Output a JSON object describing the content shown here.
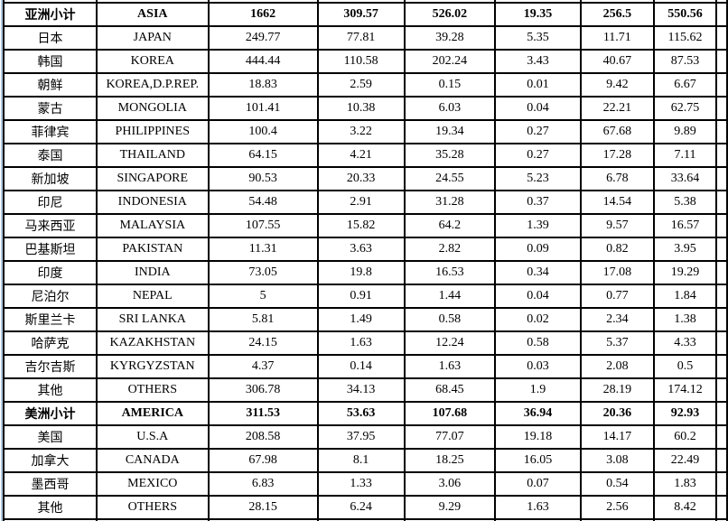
{
  "colors": {
    "border": "#000000",
    "text": "#000000",
    "background": "#ffffff",
    "excel_gridline": "#b3c9e2"
  },
  "chart_data": {
    "type": "table",
    "layout_hints": {
      "visible_columns": 8,
      "bold_subtotal_rows": [
        0,
        17
      ],
      "column_headers_visible": false
    },
    "rows": [
      {
        "cells": [
          "亚洲小计",
          "ASIA",
          "1662",
          "309.57",
          "526.02",
          "19.35",
          "256.5",
          "550.56"
        ],
        "bold": true
      },
      {
        "cells": [
          "日本",
          "JAPAN",
          "249.77",
          "77.81",
          "39.28",
          "5.35",
          "11.71",
          "115.62"
        ],
        "bold": false
      },
      {
        "cells": [
          "韩国",
          "KOREA",
          "444.44",
          "110.58",
          "202.24",
          "3.43",
          "40.67",
          "87.53"
        ],
        "bold": false
      },
      {
        "cells": [
          "朝鲜",
          "KOREA,D.P.REP.",
          "18.83",
          "2.59",
          "0.15",
          "0.01",
          "9.42",
          "6.67"
        ],
        "bold": false
      },
      {
        "cells": [
          "蒙古",
          "MONGOLIA",
          "101.41",
          "10.38",
          "6.03",
          "0.04",
          "22.21",
          "62.75"
        ],
        "bold": false
      },
      {
        "cells": [
          "菲律宾",
          "PHILIPPINES",
          "100.4",
          "3.22",
          "19.34",
          "0.27",
          "67.68",
          "9.89"
        ],
        "bold": false
      },
      {
        "cells": [
          "泰国",
          "THAILAND",
          "64.15",
          "4.21",
          "35.28",
          "0.27",
          "17.28",
          "7.11"
        ],
        "bold": false
      },
      {
        "cells": [
          "新加坡",
          "SINGAPORE",
          "90.53",
          "20.33",
          "24.55",
          "5.23",
          "6.78",
          "33.64"
        ],
        "bold": false
      },
      {
        "cells": [
          "印尼",
          "INDONESIA",
          "54.48",
          "2.91",
          "31.28",
          "0.37",
          "14.54",
          "5.38"
        ],
        "bold": false
      },
      {
        "cells": [
          "马来西亚",
          "MALAYSIA",
          "107.55",
          "15.82",
          "64.2",
          "1.39",
          "9.57",
          "16.57"
        ],
        "bold": false
      },
      {
        "cells": [
          "巴基斯坦",
          "PAKISTAN",
          "11.31",
          "3.63",
          "2.82",
          "0.09",
          "0.82",
          "3.95"
        ],
        "bold": false
      },
      {
        "cells": [
          "印度",
          "INDIA",
          "73.05",
          "19.8",
          "16.53",
          "0.34",
          "17.08",
          "19.29"
        ],
        "bold": false
      },
      {
        "cells": [
          "尼泊尔",
          "NEPAL",
          "5",
          "0.91",
          "1.44",
          "0.04",
          "0.77",
          "1.84"
        ],
        "bold": false
      },
      {
        "cells": [
          "斯里兰卡",
          "SRI LANKA",
          "5.81",
          "1.49",
          "0.58",
          "0.02",
          "2.34",
          "1.38"
        ],
        "bold": false
      },
      {
        "cells": [
          "哈萨克",
          "KAZAKHSTAN",
          "24.15",
          "1.63",
          "12.24",
          "0.58",
          "5.37",
          "4.33"
        ],
        "bold": false
      },
      {
        "cells": [
          "吉尔吉斯",
          "KYRGYZSTAN",
          "4.37",
          "0.14",
          "1.63",
          "0.03",
          "2.08",
          "0.5"
        ],
        "bold": false
      },
      {
        "cells": [
          "其他",
          "OTHERS",
          "306.78",
          "34.13",
          "68.45",
          "1.9",
          "28.19",
          "174.12"
        ],
        "bold": false
      },
      {
        "cells": [
          "美洲小计",
          "AMERICA",
          "311.53",
          "53.63",
          "107.68",
          "36.94",
          "20.36",
          "92.93"
        ],
        "bold": true
      },
      {
        "cells": [
          "美国",
          "U.S.A",
          "208.58",
          "37.95",
          "77.07",
          "19.18",
          "14.17",
          "60.2"
        ],
        "bold": false
      },
      {
        "cells": [
          "加拿大",
          "CANADA",
          "67.98",
          "8.1",
          "18.25",
          "16.05",
          "3.08",
          "22.49"
        ],
        "bold": false
      },
      {
        "cells": [
          "墨西哥",
          "MEXICO",
          "6.83",
          "1.33",
          "3.06",
          "0.07",
          "0.54",
          "1.83"
        ],
        "bold": false
      },
      {
        "cells": [
          "其他",
          "OTHERS",
          "28.15",
          "6.24",
          "9.29",
          "1.63",
          "2.56",
          "8.42"
        ],
        "bold": false
      }
    ]
  }
}
